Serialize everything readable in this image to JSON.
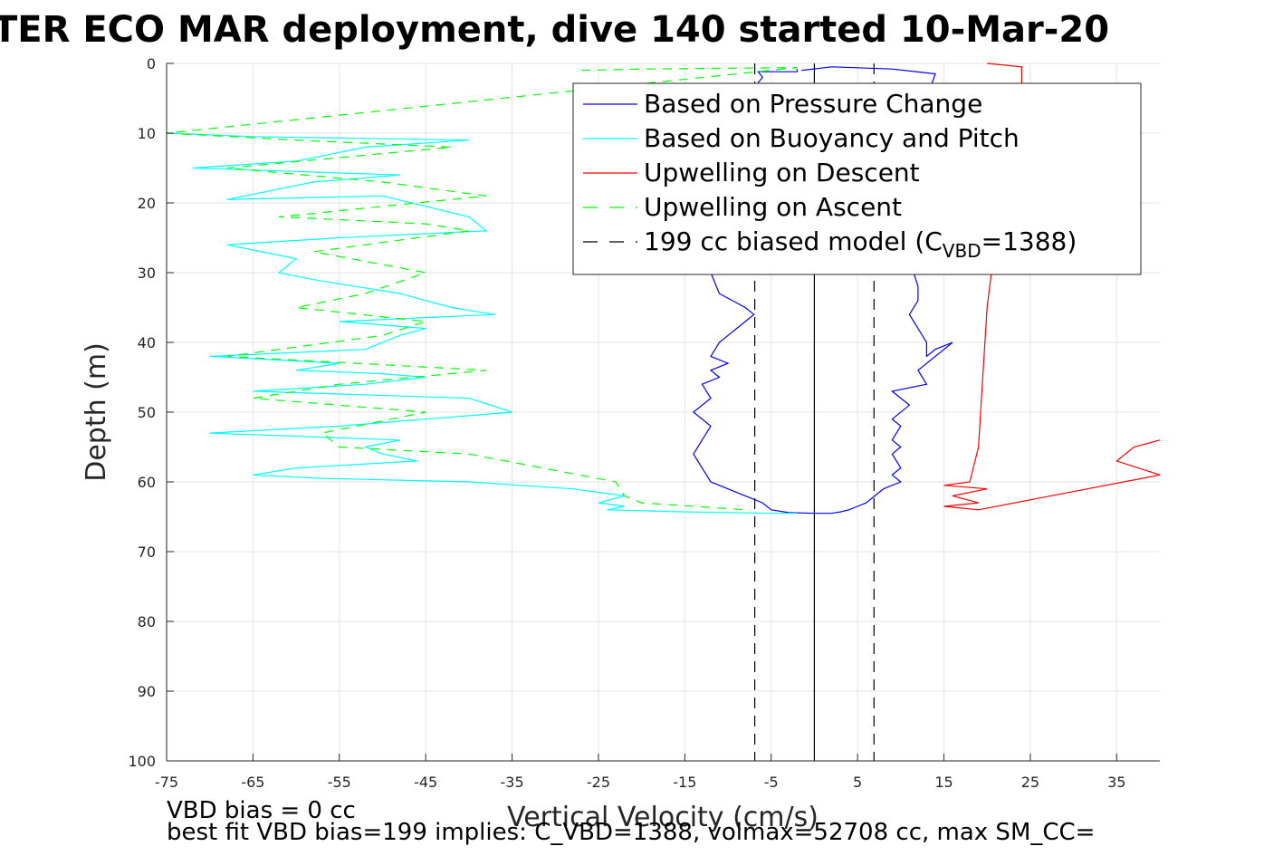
{
  "chart_data": {
    "type": "line",
    "title": "TER ECO MAR deployment, dive 140 started 10-Mar-20",
    "xlabel": "Vertical Velocity (cm/s)",
    "ylabel": "Depth (m)",
    "xlim": [
      -75,
      40
    ],
    "ylim": [
      0,
      100
    ],
    "y_reversed": true,
    "grid": true,
    "xticks": [
      -75,
      -65,
      -55,
      -45,
      -35,
      -25,
      -15,
      -5,
      5,
      15,
      25,
      35
    ],
    "yticks": [
      0,
      10,
      20,
      30,
      40,
      50,
      60,
      70,
      80,
      90,
      100
    ],
    "legend_position": "top-right",
    "legend": [
      {
        "label": "Based on Pressure Change",
        "color": "#0000ff",
        "style": "solid"
      },
      {
        "label": "Based on Buoyancy and Pitch",
        "color": "#00ffff",
        "style": "solid"
      },
      {
        "label": "Upwelling on Descent",
        "color": "#ff0000",
        "style": "solid"
      },
      {
        "label": "Upwelling on Ascent",
        "color": "#00ff00",
        "style": "dashed"
      },
      {
        "label": "199 cc biased model (C",
        "sub": "VBD",
        "suffix": "=1388)",
        "color": "#000000",
        "style": "dashed"
      }
    ],
    "series": [
      {
        "name": "Based on Pressure Change",
        "color": "#0000ff",
        "dash": "",
        "x": [
          -1.5,
          2,
          9,
          14,
          13,
          13,
          12,
          11,
          12,
          12,
          11,
          12,
          13,
          13,
          14,
          16,
          12,
          13,
          9,
          11,
          9,
          10,
          9,
          10,
          9,
          10,
          9,
          10,
          8,
          7,
          6,
          5,
          4,
          3,
          2,
          0,
          -3,
          -5,
          -6,
          -8,
          -10,
          -11,
          -12,
          -13,
          -14,
          -13,
          -12,
          -14,
          -12,
          -13,
          -11,
          -12,
          -10,
          -12,
          -11,
          -10,
          -9,
          -7,
          -8,
          -11,
          -12,
          -10,
          -8,
          -8,
          -6,
          -6.5,
          -2,
          -2
        ],
        "y": [
          1,
          0.5,
          0.8,
          1.5,
          5,
          15,
          22,
          28,
          32,
          34,
          36,
          38,
          40,
          42,
          41,
          40,
          44,
          46,
          47,
          49,
          51,
          52,
          54,
          55,
          56,
          58,
          59,
          60,
          61,
          62,
          63,
          63.5,
          64,
          64.3,
          64.5,
          64.5,
          64.4,
          64,
          63,
          62,
          61,
          60.5,
          60,
          58,
          56,
          54,
          52,
          50,
          48,
          46,
          45,
          44,
          43,
          42,
          40,
          39,
          38,
          36,
          35,
          33,
          30,
          25,
          15,
          5,
          2,
          1.2,
          1.2,
          0.8
        ]
      },
      {
        "name": "Based on Buoyancy and Pitch",
        "color": "#00ffff",
        "dash": "",
        "x": [
          -75,
          -65,
          -40,
          -52,
          -60,
          -72,
          -48,
          -58,
          -68,
          -50,
          -40,
          -38,
          -55,
          -68,
          -60,
          -62,
          -58,
          -48,
          -42,
          -37,
          -55,
          -45,
          -48,
          -52,
          -70,
          -55,
          -60,
          -50,
          -45,
          -52,
          -65,
          -40,
          -35,
          -55,
          -70,
          -48,
          -52,
          -50,
          -46,
          -60,
          -65,
          -57,
          -40,
          -28,
          -22,
          -25,
          -22,
          -24,
          -15,
          -5,
          -2
        ],
        "y": [
          10,
          10.5,
          11,
          12,
          14,
          15,
          16,
          17,
          19.5,
          19,
          22,
          24,
          25,
          26,
          28,
          30,
          31,
          33,
          35,
          36,
          37,
          38,
          39,
          41,
          42,
          43,
          44,
          44.5,
          45,
          46,
          47,
          48,
          50,
          52,
          53,
          54,
          55,
          56,
          57,
          58,
          59,
          59.5,
          60,
          61,
          62,
          63,
          63.5,
          64,
          64.3,
          64.5,
          64.5
        ]
      },
      {
        "name": "Upwelling on Descent",
        "color": "#ff0000",
        "dash": "",
        "x": [
          20,
          24,
          24,
          22,
          21,
          20,
          19.5,
          19,
          18,
          15,
          20,
          16,
          19,
          15,
          19,
          40,
          35,
          37,
          40
        ],
        "y": [
          0,
          0.5,
          5,
          15,
          25,
          35,
          45,
          55,
          60,
          60.5,
          61,
          62,
          63,
          63.5,
          64,
          59,
          57,
          55,
          54
        ]
      },
      {
        "name": "Upwelling on Ascent",
        "color": "#00ff00",
        "dash": "10 8",
        "x": [
          -27,
          -20,
          -2,
          -75,
          -60,
          -42,
          -68,
          -50,
          -38,
          -62,
          -45,
          -40,
          -58,
          -45,
          -52,
          -60,
          -45,
          -50,
          -68,
          -38,
          -55,
          -65,
          -45,
          -57,
          -55,
          -40,
          -23,
          -22,
          -20,
          -8
        ],
        "y": [
          1,
          0.8,
          0.6,
          10,
          11,
          12,
          15,
          17,
          19,
          22,
          23,
          24,
          27,
          30,
          33,
          35,
          37,
          39,
          42,
          44,
          46,
          48,
          50,
          53,
          55,
          56,
          60,
          62,
          63,
          64
        ]
      },
      {
        "name": "199 cc biased model (CVBD=1388)",
        "color": "#000000",
        "dash": "12 8",
        "x": [
          -6.9,
          -6.9
        ],
        "y": [
          0,
          100
        ]
      },
      {
        "name": "199 cc biased model (CVBD=1388)",
        "color": "#000000",
        "dash": "12 8",
        "x": [
          6.9,
          6.9
        ],
        "y": [
          0,
          100
        ]
      },
      {
        "name": "zero line",
        "color": "#000000",
        "dash": "",
        "x": [
          0,
          0
        ],
        "y": [
          0,
          100
        ]
      }
    ]
  },
  "notes": {
    "line1": "VBD bias = 0 cc",
    "line2": "best fit VBD bias=199 implies: C_VBD=1388, volmax=52708 cc, max SM_CC="
  }
}
